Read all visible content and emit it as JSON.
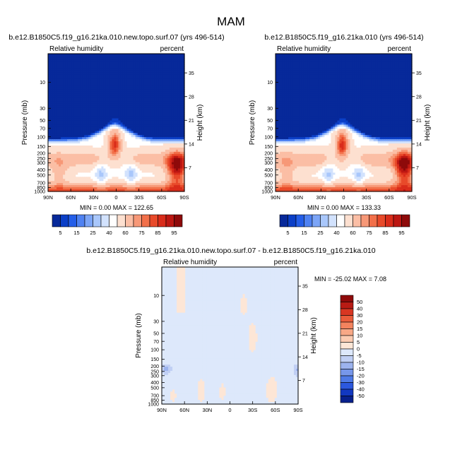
{
  "figure_title": "MAM",
  "chart_data": [
    {
      "type": "heatmap",
      "title": "b.e12.B1850C5.f19_g16.21ka.010.new.topo.surf.07 (yrs 496-514)",
      "left_label": "Relative humidity",
      "right_label": "percent",
      "xlabel": "",
      "ylabel": "Pressure (mb)",
      "y2label": "Height (km)",
      "x_ticks": [
        "90N",
        "60N",
        "30N",
        "0",
        "30S",
        "60S",
        "90S"
      ],
      "y_ticks": [
        "10",
        "30",
        "50",
        "70",
        "100",
        "150",
        "200",
        "250",
        "300",
        "400",
        "500",
        "700",
        "850",
        "1000"
      ],
      "y2_ticks": [
        "35",
        "28",
        "21",
        "14",
        "7"
      ],
      "ylim_mb": [
        1000,
        3
      ],
      "min_max_text": "MIN =   0.00   MAX = 122.65",
      "min": 0.0,
      "max": 122.65,
      "colorbar_ticks": [
        "5",
        "15",
        "25",
        "40",
        "60",
        "75",
        "85",
        "95"
      ]
    },
    {
      "type": "heatmap",
      "title": "b.e12.B1850C5.f19_g16.21ka.010 (yrs 496-514)",
      "left_label": "Relative humidity",
      "right_label": "percent",
      "xlabel": "",
      "ylabel": "Pressure (mb)",
      "y2label": "Height (km)",
      "x_ticks": [
        "90N",
        "60N",
        "30N",
        "0",
        "30S",
        "60S",
        "90S"
      ],
      "y_ticks": [
        "10",
        "30",
        "50",
        "70",
        "100",
        "150",
        "200",
        "250",
        "300",
        "400",
        "500",
        "700",
        "850",
        "1000"
      ],
      "y2_ticks": [
        "35",
        "28",
        "21",
        "14",
        "7"
      ],
      "ylim_mb": [
        1000,
        3
      ],
      "min_max_text": "MIN =   0.00   MAX = 133.33",
      "min": 0.0,
      "max": 133.33,
      "colorbar_ticks": [
        "5",
        "15",
        "25",
        "40",
        "60",
        "75",
        "85",
        "95"
      ]
    },
    {
      "type": "heatmap",
      "title": "b.e12.B1850C5.f19_g16.21ka.010.new.topo.surf.07 - b.e12.B1850C5.f19_g16.21ka.010",
      "left_label": "Relative humidity",
      "right_label": "percent",
      "xlabel": "",
      "ylabel": "Pressure (mb)",
      "y2label": "Height (km)",
      "x_ticks": [
        "90N",
        "60N",
        "30N",
        "0",
        "30S",
        "60S",
        "90S"
      ],
      "y_ticks": [
        "10",
        "30",
        "50",
        "70",
        "100",
        "150",
        "200",
        "250",
        "300",
        "400",
        "500",
        "700",
        "850",
        "1000"
      ],
      "y2_ticks": [
        "35",
        "28",
        "21",
        "14",
        "7"
      ],
      "ylim_mb": [
        1000,
        3
      ],
      "min_max_text": "MIN = -25.02   MAX =   7.08",
      "min": -25.02,
      "max": 7.08,
      "colorbar_ticks": [
        "50",
        "40",
        "30",
        "20",
        "15",
        "10",
        "5",
        "0",
        "-5",
        "-10",
        "-15",
        "-20",
        "-30",
        "-40",
        "-50"
      ]
    }
  ],
  "colors": {
    "abs_palette": [
      "#07299a",
      "#0b3fc7",
      "#245ee8",
      "#4f82f2",
      "#7ca5f7",
      "#a9c7fb",
      "#d2e2fd",
      "#ffffff",
      "#fde0d0",
      "#fbbea5",
      "#f79877",
      "#f2704a",
      "#e84a2a",
      "#d92c1a",
      "#bc1712",
      "#8e0a0a"
    ],
    "diff_palette": [
      "#08208c",
      "#1238c0",
      "#2c58de",
      "#4f7ae6",
      "#7797ea",
      "#9cb3ee",
      "#c0cff4",
      "#dde8fb",
      "#fde6d6",
      "#fbcbb1",
      "#f8a886",
      "#f3835e",
      "#ea5c3b",
      "#d83622",
      "#b81b14",
      "#8f0a0a"
    ]
  }
}
